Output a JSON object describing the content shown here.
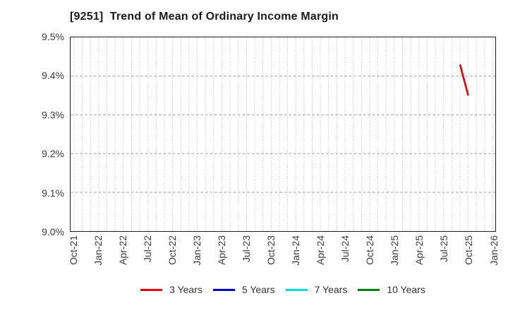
{
  "title": "[9251]  Trend of Mean of Ordinary Income Margin",
  "colors": {
    "background": "#ffffff",
    "title_text": "#1a1a1a",
    "tick_text": "#3c3c3c",
    "axis_border": "#1c1c1c",
    "grid_vertical": "#b5b5b5",
    "grid_horizontal": "#a0a0a0",
    "series_3y": "#e80000",
    "series_5y": "#0000cc",
    "series_7y": "#00dddd",
    "series_10y": "#008000"
  },
  "chart_data": {
    "type": "line",
    "title": "[9251]  Trend of Mean of Ordinary Income Margin",
    "xlabel": "",
    "ylabel": "",
    "y_axis": {
      "min": 9.0,
      "max": 9.5,
      "unit": "%",
      "tick_labels": [
        "9.5%",
        "9.4%",
        "9.3%",
        "9.2%",
        "9.1%",
        "9.0%"
      ]
    },
    "x_axis": {
      "start": "Oct-21",
      "end": "Jan-26",
      "minor_gridlines": "monthly",
      "tick_labels": [
        "Oct-21",
        "Jan-22",
        "Apr-22",
        "Jul-22",
        "Oct-22",
        "Jan-23",
        "Apr-23",
        "Jul-23",
        "Oct-23",
        "Jan-24",
        "Apr-24",
        "Jul-24",
        "Oct-24",
        "Jan-25",
        "Apr-25",
        "Jul-25",
        "Oct-25",
        "Jan-26"
      ]
    },
    "grid": {
      "vertical_style": "dotted",
      "horizontal_style": "dashed"
    },
    "legend_position": "bottom",
    "series": [
      {
        "name": "3 Years",
        "color": "#e80000",
        "points": [
          {
            "x": "Sep-25",
            "y": 9.43
          },
          {
            "x": "Oct-25",
            "y": 9.35
          }
        ]
      },
      {
        "name": "5 Years",
        "color": "#0000cc",
        "points": []
      },
      {
        "name": "7 Years",
        "color": "#00dddd",
        "points": []
      },
      {
        "name": "10 Years",
        "color": "#008000",
        "points": []
      }
    ]
  }
}
